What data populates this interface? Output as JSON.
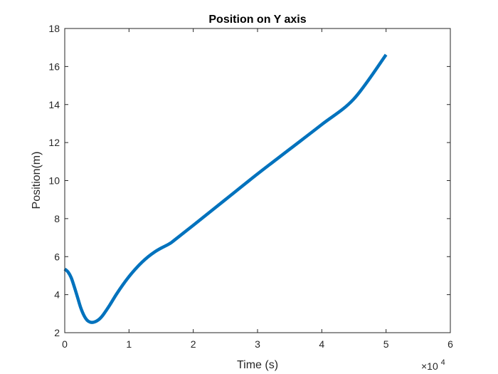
{
  "chart_data": {
    "type": "line",
    "title": "Position on Y axis",
    "xlabel": "Time (s)",
    "ylabel": "Position(m)",
    "x_exponent_label": "×10",
    "x_exponent_power": "4",
    "xlim": [
      0,
      60000
    ],
    "ylim": [
      2,
      18
    ],
    "x_ticks": [
      0,
      10000,
      20000,
      30000,
      40000,
      50000,
      60000
    ],
    "x_tick_labels": [
      "0",
      "1",
      "2",
      "3",
      "4",
      "5",
      "6"
    ],
    "y_ticks": [
      2,
      4,
      6,
      8,
      10,
      12,
      14,
      16,
      18
    ],
    "y_tick_labels": [
      "2",
      "4",
      "6",
      "8",
      "10",
      "12",
      "14",
      "16",
      "18"
    ],
    "grid": false,
    "series": [
      {
        "color": "#0072BD",
        "x": [
          0,
          500,
          1000,
          1500,
          2000,
          2500,
          3000,
          3500,
          4000,
          4500,
          5000,
          5500,
          6000,
          7000,
          8000,
          9000,
          10000,
          11000,
          12000,
          13000,
          14000,
          15000,
          16000,
          16500,
          17000,
          20000,
          25000,
          30000,
          35000,
          40000,
          45000,
          50000
        ],
        "y": [
          5.35,
          5.2,
          4.9,
          4.4,
          3.85,
          3.3,
          2.9,
          2.65,
          2.55,
          2.55,
          2.62,
          2.75,
          2.95,
          3.45,
          4.0,
          4.5,
          4.95,
          5.35,
          5.7,
          6.0,
          6.25,
          6.45,
          6.62,
          6.72,
          6.85,
          7.65,
          9.0,
          10.35,
          11.65,
          12.95,
          14.3,
          16.62
        ]
      }
    ]
  }
}
